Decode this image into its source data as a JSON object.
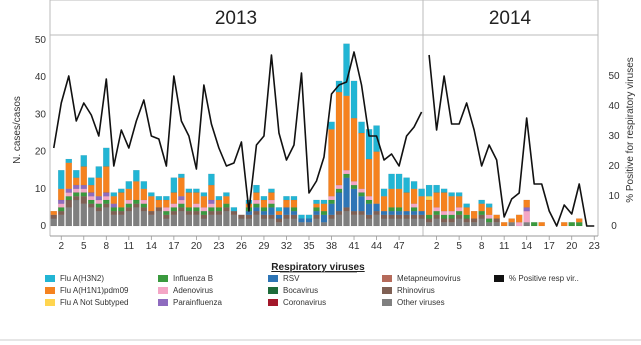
{
  "chart_data": {
    "type": "bar",
    "stacked": true,
    "years": [
      {
        "label": "2013",
        "from_index": 0,
        "to_index": 49
      },
      {
        "label": "2014",
        "from_index": 50,
        "to_index": 72
      }
    ],
    "weeks": [
      1,
      2,
      3,
      4,
      5,
      6,
      7,
      8,
      9,
      10,
      11,
      12,
      13,
      14,
      15,
      16,
      17,
      18,
      19,
      20,
      21,
      22,
      23,
      24,
      25,
      26,
      27,
      28,
      29,
      30,
      31,
      32,
      33,
      34,
      35,
      36,
      37,
      38,
      39,
      40,
      41,
      42,
      43,
      44,
      45,
      46,
      47,
      48,
      49,
      50,
      1,
      2,
      3,
      4,
      5,
      6,
      7,
      8,
      9,
      10,
      11,
      12,
      13,
      14,
      15,
      16,
      17,
      18,
      19,
      20,
      21,
      22,
      23
    ],
    "x_tick_labels_2013": [
      "2",
      "5",
      "8",
      "11",
      "14",
      "17",
      "20",
      "23",
      "26",
      "29",
      "32",
      "35",
      "38",
      "41",
      "44",
      "47"
    ],
    "x_tick_labels_2014": [
      "2",
      "5",
      "8",
      "11",
      "14",
      "17",
      "20",
      "23"
    ],
    "ylabel_left": "N. cases/casos",
    "ylabel_right": "% Positive for respiratory viruses",
    "ylim_left": [
      0,
      50
    ],
    "ylim_right": [
      0,
      60
    ],
    "yticks_left": [
      0,
      10,
      20,
      30,
      40,
      50
    ],
    "yticks_right": [
      0,
      10,
      20,
      30,
      40,
      50
    ],
    "legend_title": "Respiratory viruses",
    "legend_placement": "bottom",
    "series": [
      {
        "name": "Other viruses",
        "color": "#7f7f7f",
        "values": [
          2,
          3,
          5,
          7,
          6,
          5,
          4,
          5,
          3,
          3,
          4,
          5,
          4,
          3,
          4,
          2,
          3,
          4,
          3,
          3,
          2,
          3,
          3,
          4,
          3,
          2,
          2,
          3,
          2,
          2,
          1,
          2,
          2,
          1,
          1,
          2,
          1,
          2,
          3,
          4,
          3,
          3,
          2,
          3,
          2,
          2,
          2,
          2,
          2,
          2,
          1,
          2,
          1,
          1,
          2,
          1,
          1,
          2,
          1,
          1,
          0,
          1,
          0,
          1,
          0,
          0,
          0,
          0,
          0,
          0,
          0,
          0,
          0
        ]
      },
      {
        "name": "Rhinovirus",
        "color": "#7f6054",
        "values": [
          1,
          1,
          2,
          1,
          2,
          1,
          1,
          1,
          1,
          1,
          1,
          1,
          1,
          1,
          1,
          1,
          1,
          1,
          1,
          1,
          1,
          1,
          1,
          1,
          1,
          1,
          1,
          1,
          1,
          1,
          1,
          1,
          1,
          0,
          0,
          1,
          0,
          1,
          1,
          1,
          1,
          1,
          1,
          1,
          1,
          1,
          1,
          1,
          1,
          1,
          1,
          1,
          1,
          1,
          1,
          1,
          1,
          1,
          0,
          1,
          0,
          0,
          0,
          0,
          0,
          0,
          0,
          0,
          0,
          0,
          0,
          0,
          0
        ]
      },
      {
        "name": "RSV",
        "color": "#2e75b6",
        "values": [
          0,
          0,
          0,
          0,
          0,
          0,
          0,
          0,
          0,
          0,
          0,
          0,
          0,
          0,
          0,
          0,
          0,
          0,
          0,
          0,
          0,
          0,
          0,
          0,
          0,
          0,
          1,
          1,
          1,
          2,
          1,
          2,
          1,
          1,
          1,
          1,
          2,
          3,
          5,
          8,
          6,
          4,
          3,
          2,
          1,
          1,
          1,
          1,
          1,
          1,
          0,
          0,
          0,
          0,
          0,
          0,
          0,
          0,
          0,
          0,
          0,
          0,
          0,
          0,
          0,
          0,
          0,
          0,
          0,
          0,
          0,
          0,
          0
        ]
      },
      {
        "name": "Influenza B",
        "color": "#3a9a3e",
        "values": [
          0,
          1,
          1,
          1,
          1,
          1,
          1,
          1,
          1,
          1,
          1,
          1,
          1,
          0,
          0,
          1,
          1,
          1,
          1,
          1,
          1,
          1,
          1,
          1,
          0,
          0,
          1,
          1,
          1,
          1,
          0,
          0,
          1,
          0,
          0,
          1,
          1,
          1,
          1,
          1,
          1,
          1,
          1,
          0,
          0,
          1,
          1,
          0,
          1,
          0,
          1,
          1,
          1,
          1,
          1,
          1,
          0,
          1,
          1,
          0,
          0,
          0,
          0,
          0,
          1,
          0,
          0,
          0,
          0,
          1,
          1,
          0,
          0
        ]
      },
      {
        "name": "Adenovirus",
        "color": "#f4a6c6",
        "values": [
          0,
          1,
          1,
          1,
          1,
          1,
          1,
          1,
          0,
          0,
          1,
          0,
          1,
          0,
          0,
          1,
          1,
          1,
          0,
          1,
          1,
          1,
          0,
          0,
          0,
          0,
          0,
          1,
          0,
          1,
          0,
          0,
          0,
          0,
          0,
          0,
          0,
          1,
          1,
          1,
          1,
          1,
          1,
          0,
          0,
          0,
          0,
          0,
          1,
          0,
          0,
          1,
          1,
          1,
          1,
          0,
          0,
          0,
          1,
          0,
          0,
          0,
          1,
          3,
          0,
          0,
          0,
          0,
          0,
          0,
          0,
          0,
          0
        ]
      },
      {
        "name": "Parainfluenza",
        "color": "#8e6bbf",
        "values": [
          0,
          1,
          1,
          1,
          1,
          1,
          1,
          1,
          1,
          0,
          0,
          0,
          0,
          0,
          0,
          0,
          0,
          1,
          0,
          0,
          0,
          1,
          0,
          0,
          0,
          0,
          0,
          0,
          0,
          0,
          0,
          0,
          0,
          0,
          0,
          0,
          0,
          0,
          0,
          0,
          0,
          0,
          0,
          0,
          0,
          0,
          0,
          0,
          0,
          0,
          0,
          0,
          0,
          0,
          0,
          0,
          0,
          0,
          0,
          0,
          0,
          0,
          0,
          1,
          0,
          0,
          0,
          0,
          0,
          0,
          0,
          0,
          0
        ]
      },
      {
        "name": "Flu A(H1N1)pdm09",
        "color": "#f5821f",
        "values": [
          1,
          3,
          7,
          2,
          5,
          2,
          5,
          7,
          2,
          4,
          3,
          5,
          3,
          4,
          2,
          2,
          3,
          5,
          4,
          3,
          3,
          4,
          2,
          2,
          0,
          0,
          1,
          2,
          2,
          2,
          1,
          2,
          2,
          0,
          0,
          1,
          2,
          18,
          25,
          20,
          17,
          15,
          10,
          14,
          4,
          5,
          5,
          5,
          4,
          4,
          4,
          4,
          5,
          4,
          3,
          2,
          2,
          2,
          2,
          1,
          1,
          1,
          2,
          2,
          0,
          1,
          0,
          0,
          1,
          0,
          1,
          0,
          0
        ]
      },
      {
        "name": "Flu A Not Subtyped",
        "color": "#ffd54f",
        "values": [
          0,
          0,
          0,
          0,
          0,
          0,
          0,
          0,
          0,
          0,
          0,
          0,
          0,
          0,
          0,
          0,
          0,
          0,
          0,
          0,
          0,
          0,
          0,
          0,
          0,
          0,
          0,
          0,
          0,
          0,
          0,
          0,
          0,
          0,
          0,
          0,
          0,
          0,
          0,
          0,
          0,
          0,
          0,
          0,
          0,
          0,
          0,
          0,
          0,
          0,
          1,
          0,
          0,
          0,
          0,
          0,
          0,
          0,
          0,
          0,
          0,
          0,
          0,
          0,
          0,
          0,
          0,
          0,
          0,
          0,
          0,
          0,
          0
        ]
      },
      {
        "name": "Flu A(H3N2)",
        "color": "#22b5d4",
        "values": [
          0,
          5,
          1,
          2,
          3,
          2,
          3,
          5,
          1,
          1,
          2,
          3,
          2,
          1,
          1,
          1,
          4,
          1,
          1,
          1,
          1,
          3,
          1,
          1,
          1,
          0,
          1,
          2,
          1,
          1,
          1,
          1,
          1,
          1,
          1,
          1,
          1,
          2,
          3,
          14,
          10,
          3,
          8,
          7,
          2,
          4,
          4,
          4,
          2,
          2,
          3,
          2,
          1,
          1,
          1,
          1,
          0,
          1,
          1,
          0,
          0,
          0,
          0,
          0,
          0,
          0,
          0,
          0,
          0,
          0,
          0,
          0,
          0
        ]
      },
      {
        "name": "Metapneumovirus",
        "color": "#b56a5a",
        "values": [
          0,
          0,
          0,
          0,
          0,
          0,
          0,
          0,
          0,
          0,
          0,
          0,
          0,
          0,
          0,
          0,
          0,
          0,
          0,
          0,
          0,
          0,
          0,
          0,
          0,
          0,
          0,
          0,
          0,
          0,
          0,
          0,
          0,
          0,
          0,
          0,
          0,
          0,
          0,
          0,
          0,
          0,
          0,
          0,
          0,
          0,
          0,
          0,
          0,
          0,
          0,
          0,
          0,
          0,
          0,
          0,
          0,
          0,
          0,
          0,
          0,
          0,
          0,
          0,
          0,
          0,
          0,
          0,
          0,
          0,
          0,
          0,
          0
        ]
      },
      {
        "name": "Bocavirus",
        "color": "#1e6b3a",
        "values": [
          0,
          0,
          0,
          0,
          0,
          0,
          0,
          0,
          0,
          0,
          0,
          0,
          0,
          0,
          0,
          0,
          0,
          0,
          0,
          0,
          0,
          0,
          0,
          0,
          0,
          0,
          0,
          0,
          0,
          0,
          0,
          0,
          0,
          0,
          0,
          0,
          0,
          0,
          0,
          0,
          0,
          0,
          0,
          0,
          0,
          0,
          0,
          0,
          0,
          0,
          0,
          0,
          0,
          0,
          0,
          0,
          0,
          0,
          0,
          0,
          0,
          0,
          0,
          0,
          0,
          0,
          0,
          0,
          0,
          0,
          0,
          0,
          0
        ]
      },
      {
        "name": "Coronavirus",
        "color": "#a3172a",
        "values": [
          0,
          0,
          0,
          0,
          0,
          0,
          0,
          0,
          0,
          0,
          0,
          0,
          0,
          0,
          0,
          0,
          0,
          0,
          0,
          0,
          0,
          0,
          0,
          0,
          0,
          0,
          0,
          0,
          0,
          0,
          0,
          0,
          0,
          0,
          0,
          0,
          0,
          0,
          0,
          0,
          0,
          0,
          0,
          0,
          0,
          0,
          0,
          0,
          0,
          0,
          0,
          0,
          0,
          0,
          0,
          0,
          0,
          0,
          0,
          0,
          0,
          0,
          0,
          0,
          0,
          0,
          0,
          0,
          0,
          0,
          0,
          0,
          0
        ]
      }
    ],
    "line": {
      "name": "% Positive resp vir..",
      "color": "#111111",
      "axis": "right",
      "values": [
        26,
        41,
        50,
        35,
        41,
        37,
        30,
        49,
        20,
        32,
        26,
        35,
        42,
        30,
        29,
        20,
        50,
        35,
        30,
        19,
        47,
        34,
        26,
        20,
        21,
        28,
        5,
        27,
        30,
        57,
        31,
        22,
        27,
        51,
        11,
        15,
        23,
        44,
        47,
        48,
        58,
        47,
        30,
        30,
        22,
        24,
        20,
        30,
        33,
        38,
        57,
        32,
        50,
        34,
        34,
        41,
        32,
        20,
        27,
        22,
        3,
        9,
        11,
        36,
        14,
        14,
        5,
        0,
        7,
        4,
        14,
        0,
        0
      ]
    }
  }
}
